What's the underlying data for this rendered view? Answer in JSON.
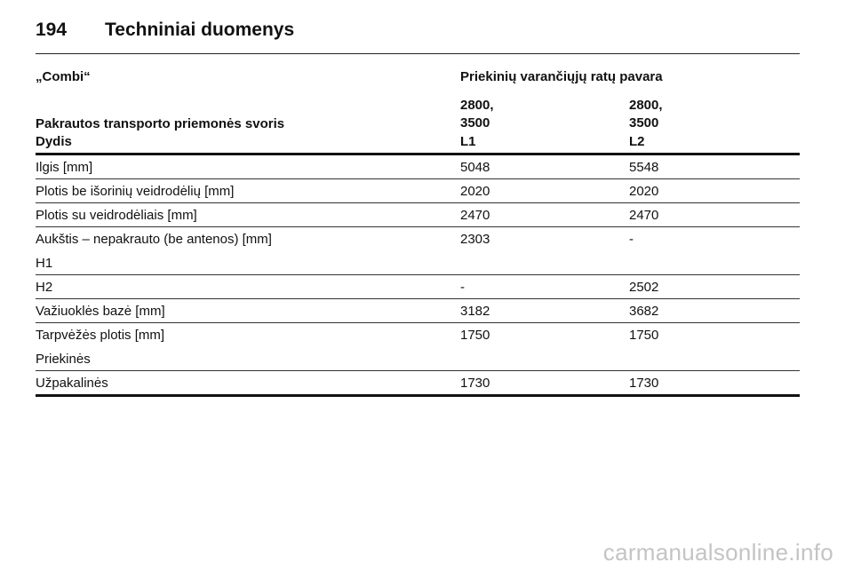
{
  "header": {
    "page_number": "194",
    "title": "Techniniai duomenys"
  },
  "table": {
    "model": "„Combi“",
    "drive": "Priekinių varančiųjų ratų pavara",
    "weight_label": "Pakrautos transporto priemonės svoris",
    "weights": [
      "2800,\n3500",
      "2800,\n3500"
    ],
    "size_label": "Dydis",
    "sizes": [
      "L1",
      "L2"
    ],
    "rows": [
      {
        "label": "Ilgis [mm]",
        "l1": "5048",
        "l2": "5548"
      },
      {
        "label": "Plotis be išorinių veidrodėlių [mm]",
        "l1": "2020",
        "l2": "2020"
      },
      {
        "label": "Plotis su veidrodėliais [mm]",
        "l1": "2470",
        "l2": "2470"
      },
      {
        "label": "Aukštis – nepakrauto (be antenos) [mm]",
        "sublabel": "H1",
        "l1": "2303",
        "l2": "-"
      },
      {
        "label": "H2",
        "l1": "-",
        "l2": "2502"
      },
      {
        "label": "Važiuoklės bazė [mm]",
        "l1": "3182",
        "l2": "3682"
      },
      {
        "label": "Tarpvėžės plotis [mm]",
        "sublabel": "Priekinės",
        "l1": "1750",
        "l2": "1750"
      },
      {
        "label": "Užpakalinės",
        "l1": "1730",
        "l2": "1730"
      }
    ]
  },
  "watermark": "carmanualsonline.info"
}
